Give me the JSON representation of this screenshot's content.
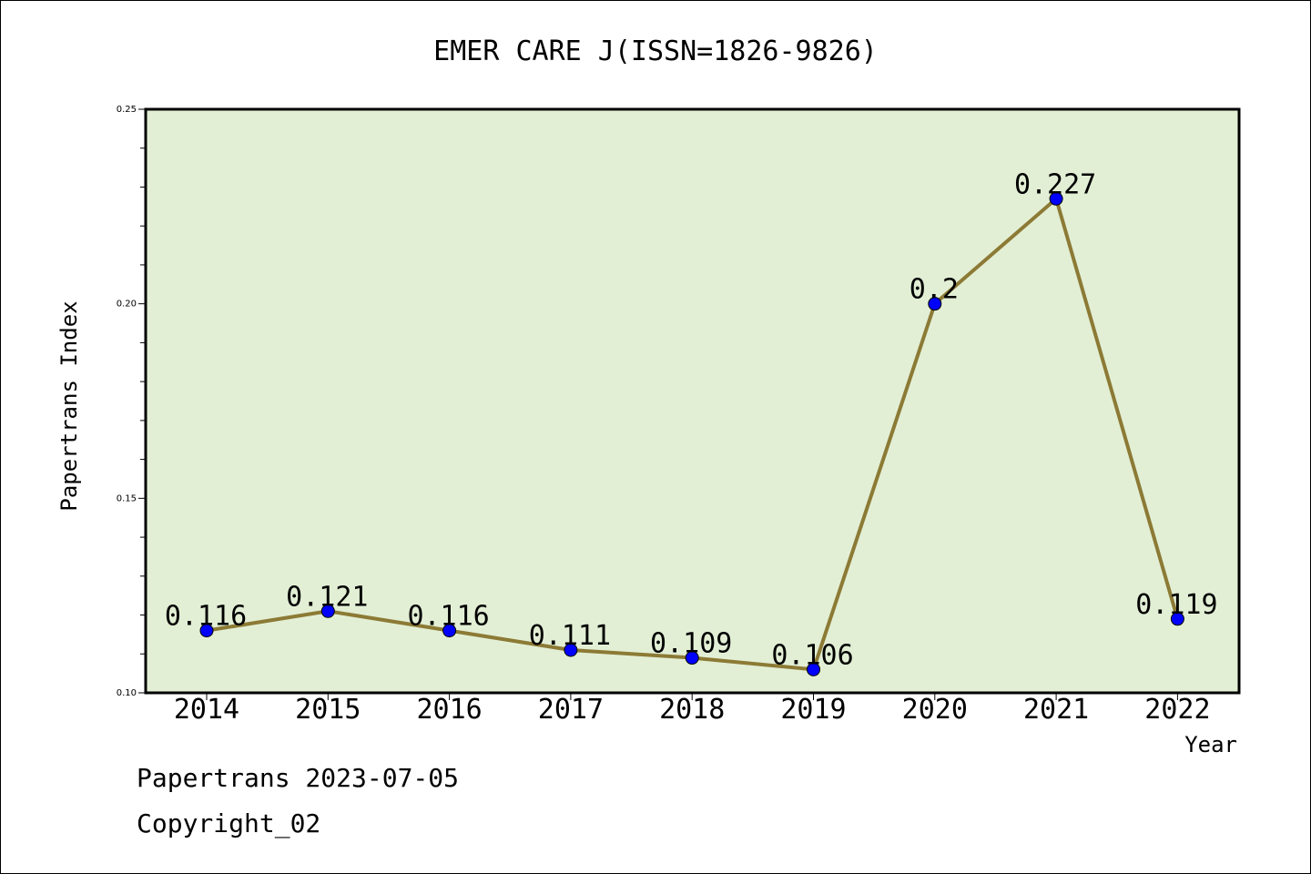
{
  "chart_data": {
    "type": "line",
    "title": "EMER CARE J(ISSN=1826-9826)",
    "xlabel": "Year",
    "ylabel": "Papertrans Index",
    "categories": [
      "2014",
      "2015",
      "2016",
      "2017",
      "2018",
      "2019",
      "2020",
      "2021",
      "2022"
    ],
    "series": [
      {
        "values": [
          0.116,
          0.121,
          0.116,
          0.111,
          0.109,
          0.106,
          0.2,
          0.227,
          0.119
        ]
      }
    ],
    "data_labels": [
      "0.116",
      "0.121",
      "0.116",
      "0.111",
      "0.109",
      "0.106",
      "0.2",
      "0.227",
      "0.119"
    ],
    "ylim": [
      0.1,
      0.25
    ],
    "yticks": [
      "0.10",
      "0.15",
      "0.20",
      "0.25"
    ],
    "grid": false,
    "colors": {
      "plot_bg": "#e2efd5",
      "line": "#8c7a35",
      "marker": "#0000ff"
    }
  },
  "footer": {
    "line1": "Papertrans 2023-07-05",
    "line2": "Copyright_02"
  }
}
